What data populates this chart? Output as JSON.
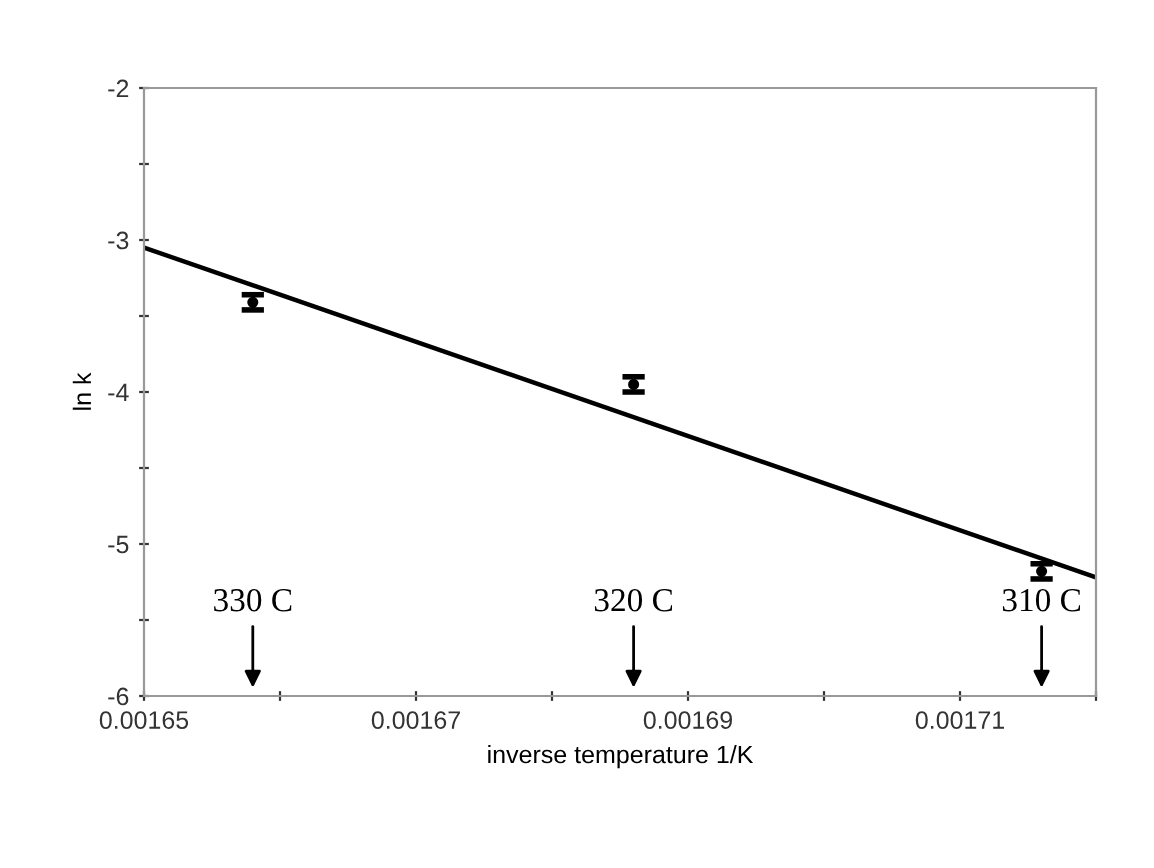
{
  "chart_data": {
    "type": "scatter",
    "xlabel": "inverse temperature 1/K",
    "ylabel": "ln k",
    "xlim": [
      0.00165,
      0.00172
    ],
    "xticks": [
      {
        "value": 0.00165,
        "label": "0.00165"
      },
      {
        "value": 0.00166,
        "label": null
      },
      {
        "value": 0.00167,
        "label": "0.00167"
      },
      {
        "value": 0.00168,
        "label": null
      },
      {
        "value": 0.00169,
        "label": "0.00169"
      },
      {
        "value": 0.0017,
        "label": null
      },
      {
        "value": 0.00171,
        "label": "0.00171"
      },
      {
        "value": 0.00172,
        "label": null
      }
    ],
    "ylim": [
      -6,
      -2
    ],
    "yticks": [
      -6,
      {
        "value": -5.5,
        "label": null
      },
      -5,
      {
        "value": -4.5,
        "label": null
      },
      -4,
      {
        "value": -3.5,
        "label": null
      },
      -3,
      {
        "value": -2.5,
        "label": null
      },
      -2
    ],
    "grid": false,
    "series": [
      {
        "color": "#000000",
        "x": [
          0.001658,
          0.001686,
          0.001716
        ],
        "values": [
          -3.41,
          -3.95,
          -5.18
        ],
        "errors": [
          0.05,
          0.05,
          0.05
        ]
      },
      {
        "type": "line",
        "color": "#000000",
        "x": [
          0.00165,
          0.00172
        ],
        "values": [
          -3.05,
          -5.22
        ],
        "line_style": "solid"
      }
    ],
    "annotations": [
      "330 C",
      "320 C",
      "310 C"
    ]
  }
}
